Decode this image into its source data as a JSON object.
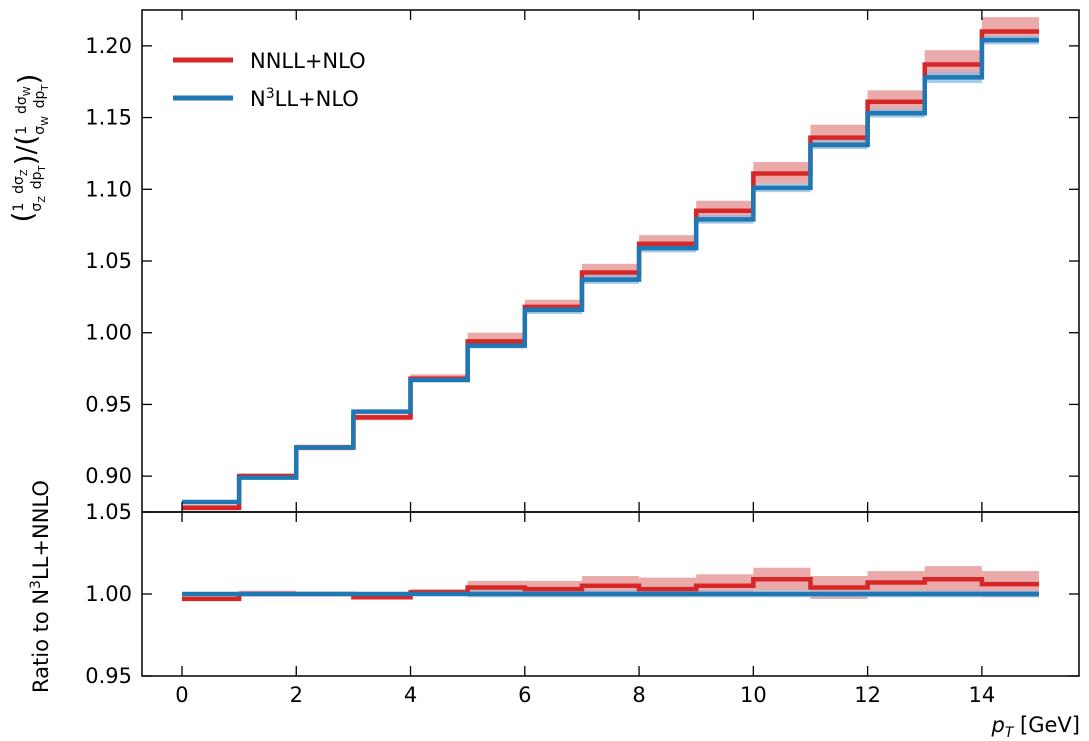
{
  "chart_data": [
    {
      "type": "line",
      "panel": "top",
      "xlabel": "",
      "ylabel": "(1/σZ dσZ/dpT) / (1/σW dσW/dpT)",
      "xlim": [
        -0.7,
        15.7
      ],
      "ylim": [
        0.875,
        1.225
      ],
      "xticks": [
        0,
        2,
        4,
        6,
        8,
        10,
        12,
        14
      ],
      "yticks": [
        0.9,
        0.95,
        1.0,
        1.05,
        1.1,
        1.15,
        1.2
      ],
      "ytick_labels": [
        "0.90",
        "0.95",
        "1.00",
        "1.05",
        "1.10",
        "1.15",
        "1.20"
      ],
      "legend_position": "top-left",
      "bin_edges": [
        0,
        1,
        2,
        3,
        4,
        5,
        6,
        7,
        8,
        9,
        10,
        11,
        12,
        13,
        14,
        15
      ],
      "series": [
        {
          "name": "NNLL+NLO",
          "color": "#d62728",
          "band_color": "#e89b9b",
          "values": [
            0.878,
            0.9,
            0.92,
            0.941,
            0.968,
            0.994,
            1.018,
            1.042,
            1.062,
            1.085,
            1.111,
            1.136,
            1.161,
            1.187,
            1.21
          ],
          "band_low": [
            0.876,
            0.898,
            0.918,
            0.939,
            0.966,
            0.991,
            1.014,
            1.038,
            1.058,
            1.08,
            1.104,
            1.129,
            1.154,
            1.179,
            1.203
          ],
          "band_high": [
            0.88,
            0.902,
            0.922,
            0.943,
            0.971,
            1.0,
            1.023,
            1.048,
            1.068,
            1.092,
            1.119,
            1.145,
            1.169,
            1.197,
            1.22
          ]
        },
        {
          "name": "N³LL+NLO",
          "color": "#1f77b4",
          "band_color": "#8bbbdf",
          "values": [
            0.882,
            0.899,
            0.92,
            0.945,
            0.967,
            0.991,
            1.016,
            1.037,
            1.059,
            1.079,
            1.101,
            1.131,
            1.153,
            1.178,
            1.204
          ],
          "band_low": [
            0.881,
            0.898,
            0.919,
            0.944,
            0.966,
            0.989,
            1.013,
            1.034,
            1.056,
            1.076,
            1.098,
            1.128,
            1.15,
            1.174,
            1.201
          ],
          "band_high": [
            0.883,
            0.9,
            0.921,
            0.946,
            0.968,
            0.993,
            1.018,
            1.04,
            1.062,
            1.082,
            1.104,
            1.134,
            1.156,
            1.182,
            1.207
          ]
        }
      ]
    },
    {
      "type": "line",
      "panel": "bottom",
      "xlabel": "pT [GeV]",
      "ylabel": "Ratio to N³LL+NNLO",
      "xlim": [
        -0.7,
        15.7
      ],
      "ylim": [
        0.95,
        1.05
      ],
      "xticks": [
        0,
        2,
        4,
        6,
        8,
        10,
        12,
        14
      ],
      "yticks": [
        0.95,
        1.0,
        1.05
      ],
      "ytick_labels": [
        "0.95",
        "1.00",
        "1.05"
      ],
      "bin_edges": [
        0,
        1,
        2,
        3,
        4,
        5,
        6,
        7,
        8,
        9,
        10,
        11,
        12,
        13,
        14,
        15
      ],
      "series": [
        {
          "name": "NNLL+NLO",
          "color": "#d62728",
          "band_color": "#e89b9b",
          "values": [
            0.997,
            1.0,
            1.0,
            0.998,
            1.001,
            1.004,
            1.003,
            1.005,
            1.003,
            1.005,
            1.009,
            1.004,
            1.007,
            1.009,
            1.006
          ],
          "band_low": [
            0.997,
            0.999,
            0.999,
            0.998,
            1.0,
            1.0,
            0.999,
            1.0,
            0.999,
            0.999,
            1.002,
            0.997,
            0.999,
            1.0,
            0.998
          ],
          "band_high": [
            0.998,
            1.002,
            1.001,
            0.999,
            1.003,
            1.008,
            1.008,
            1.011,
            1.01,
            1.012,
            1.016,
            1.011,
            1.014,
            1.017,
            1.014
          ]
        },
        {
          "name": "N³LL+NLO",
          "color": "#1f77b4",
          "band_color": "#8bbbdf",
          "values": [
            1.0,
            1.0,
            1.0,
            1.0,
            1.0,
            1.0,
            1.0,
            1.0,
            1.0,
            1.0,
            1.0,
            1.0,
            1.0,
            1.0,
            1.0
          ],
          "band_low": [
            0.999,
            0.999,
            0.999,
            0.999,
            0.999,
            0.998,
            0.998,
            0.998,
            0.998,
            0.998,
            0.998,
            0.998,
            0.998,
            0.998,
            0.998
          ],
          "band_high": [
            1.001,
            1.001,
            1.001,
            1.001,
            1.001,
            1.002,
            1.002,
            1.002,
            1.002,
            1.002,
            1.002,
            1.002,
            1.002,
            1.002,
            1.002
          ]
        }
      ]
    }
  ]
}
